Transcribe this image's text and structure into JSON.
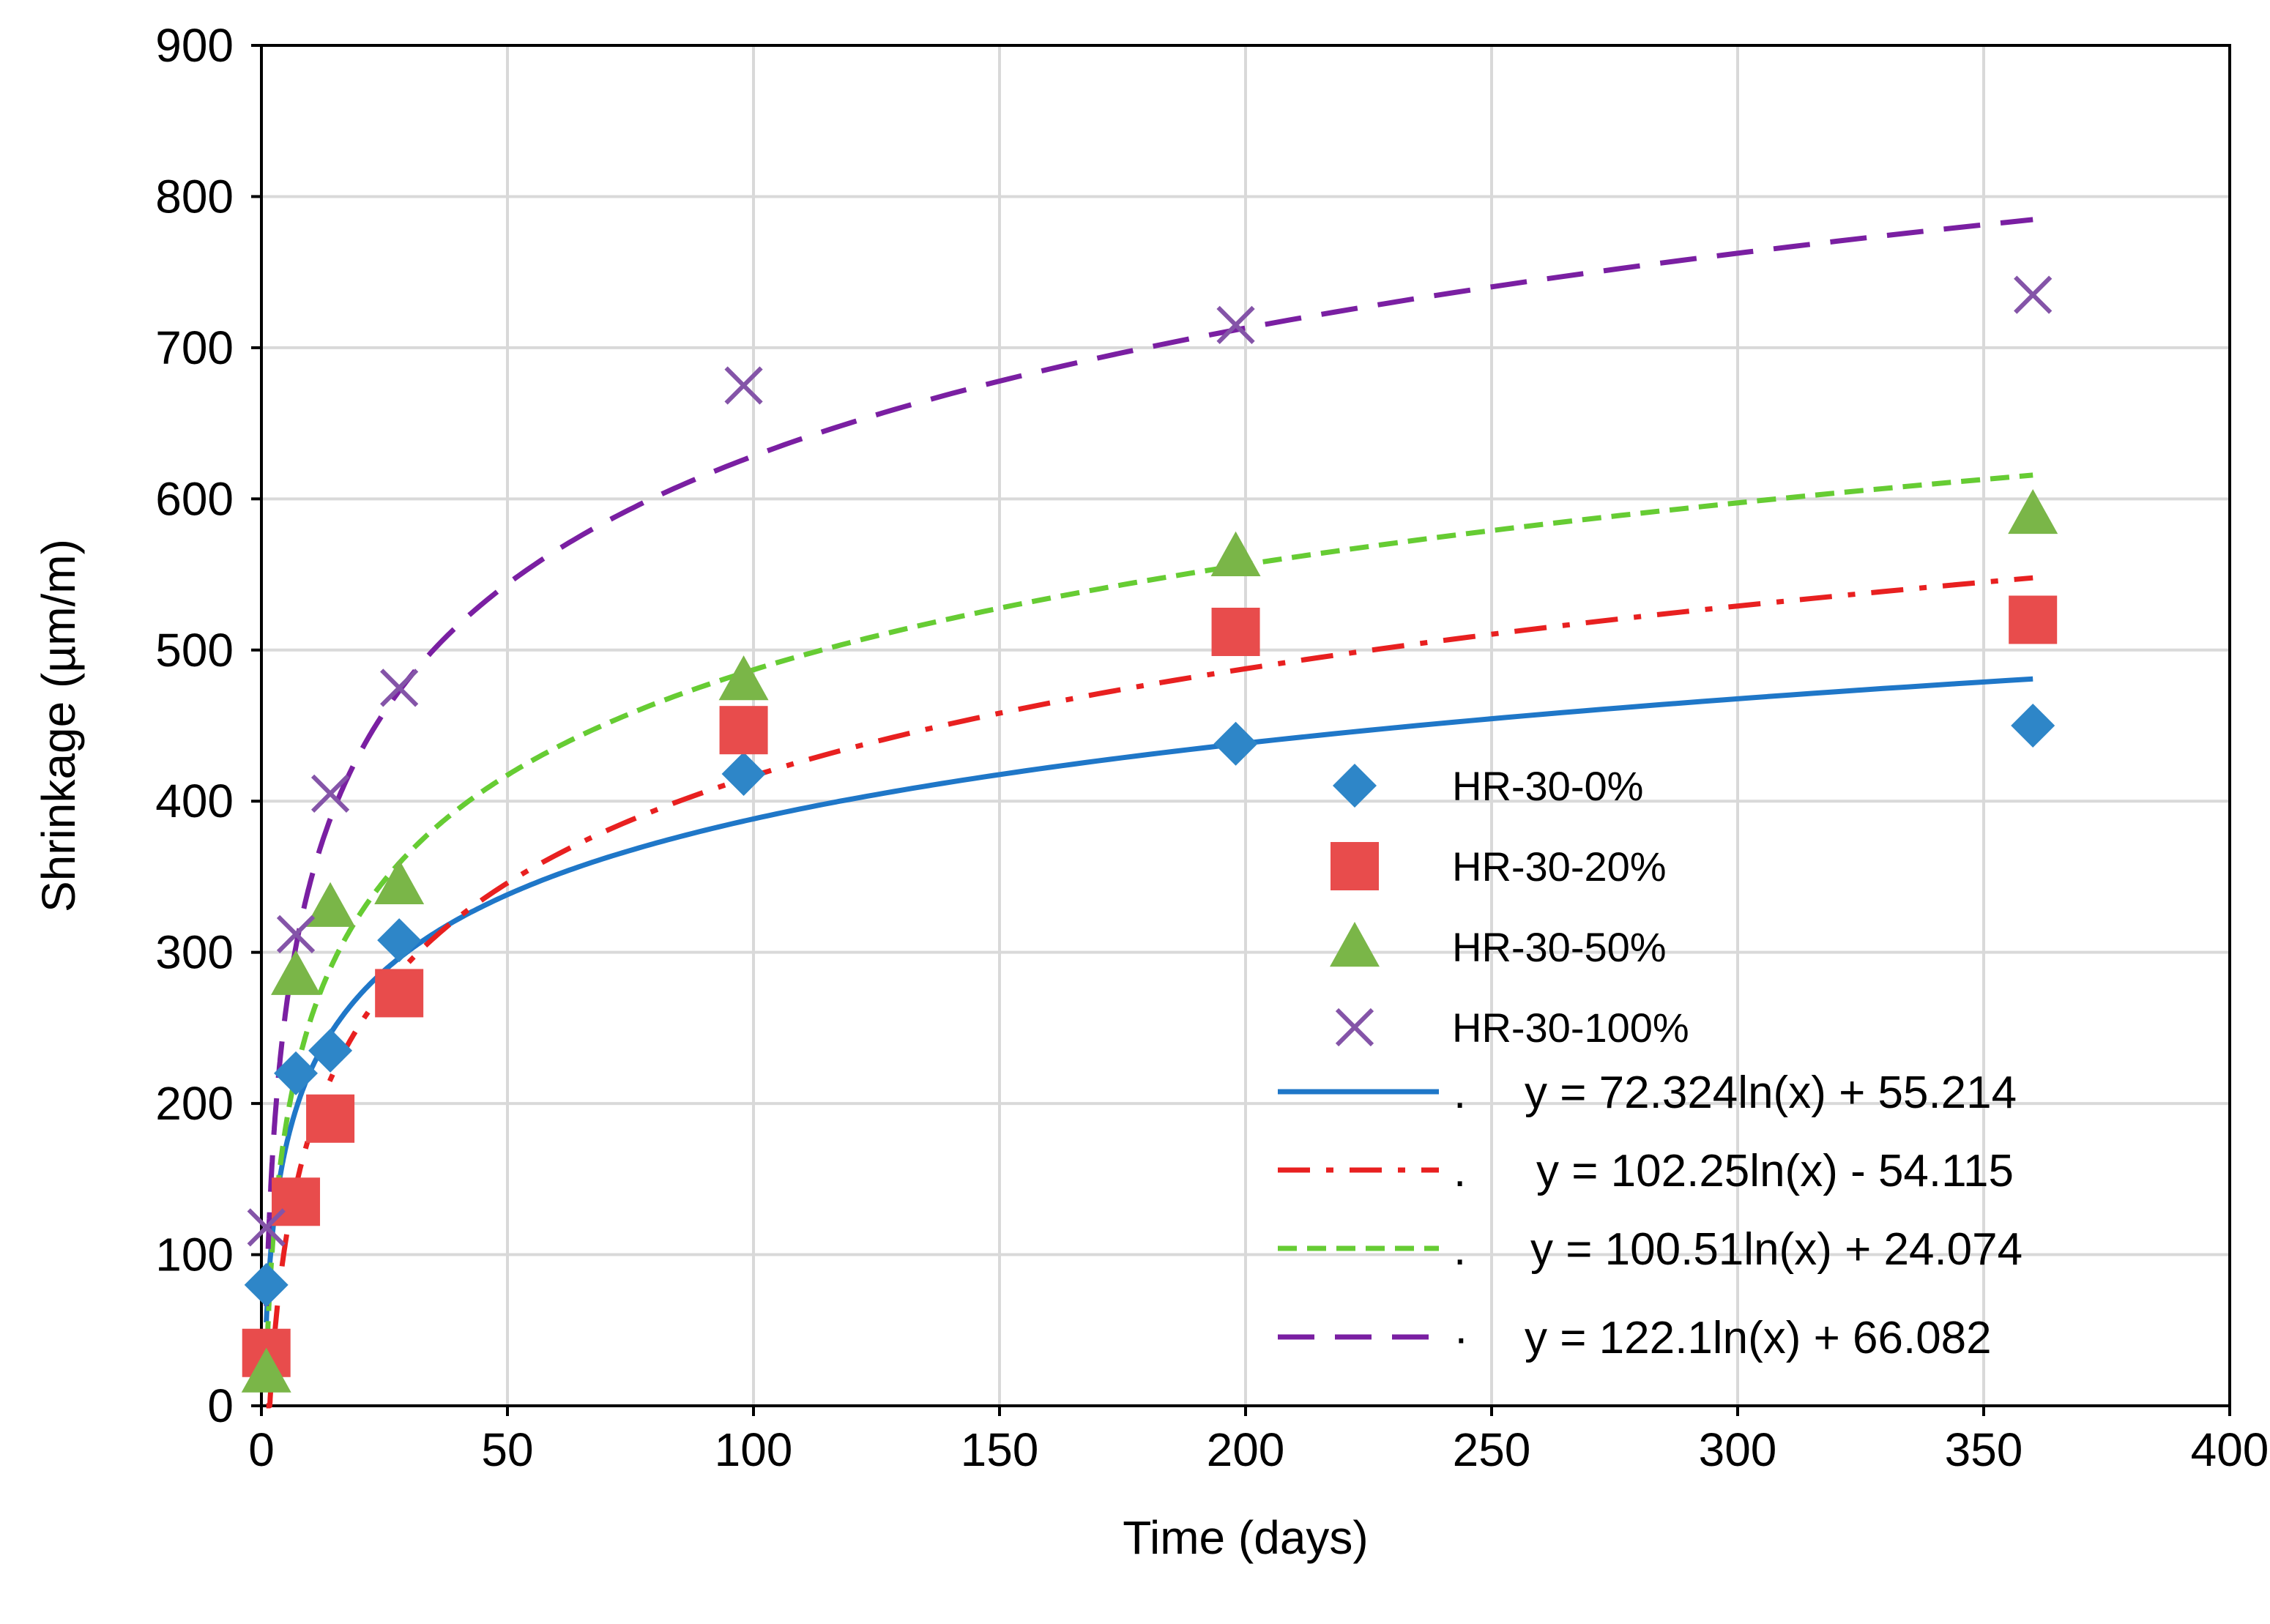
{
  "chart_data": {
    "type": "scatter",
    "xlabel": "Time (days)",
    "ylabel": "Shrinkage (µm/m)",
    "xlim": [
      0,
      400
    ],
    "ylim": [
      0,
      900
    ],
    "xticks": [
      0,
      50,
      100,
      150,
      200,
      250,
      300,
      350,
      400
    ],
    "yticks": [
      0,
      100,
      200,
      300,
      400,
      500,
      600,
      700,
      800,
      900
    ],
    "xtick_labels": [
      "0",
      "50",
      "100",
      "150",
      "200",
      "250",
      "300",
      "350",
      "400"
    ],
    "ytick_labels": [
      "0",
      "100",
      "200",
      "300",
      "400",
      "500",
      "600",
      "700",
      "800",
      "900"
    ],
    "grid": true,
    "legend_position": "center-right",
    "series": [
      {
        "name": "HR-30-0%",
        "marker": "diamond",
        "color": "#2e86c8",
        "x": [
          1,
          7,
          14,
          28,
          98,
          198,
          360
        ],
        "y": [
          80,
          220,
          235,
          308,
          418,
          438,
          450
        ]
      },
      {
        "name": "HR-30-20%",
        "marker": "square",
        "color": "#e84c4c",
        "x": [
          1,
          7,
          14,
          28,
          98,
          198,
          360
        ],
        "y": [
          35,
          135,
          190,
          273,
          447,
          512,
          520
        ]
      },
      {
        "name": "HR-30-50%",
        "marker": "triangle",
        "color": "#7ab648",
        "x": [
          1,
          7,
          14,
          28,
          98,
          198,
          360
        ],
        "y": [
          22,
          285,
          330,
          345,
          480,
          562,
          590
        ]
      },
      {
        "name": "HR-30-100%",
        "marker": "x",
        "color": "#8454a8",
        "x": [
          1,
          7,
          14,
          28,
          98,
          198,
          360
        ],
        "y": [
          118,
          312,
          405,
          475,
          675,
          715,
          735
        ]
      }
    ],
    "trendlines": [
      {
        "label": ".",
        "equation": "y = 72.324ln(x) + 55.214",
        "a": 72.324,
        "b": 55.214,
        "color": "#1f77c8",
        "dash": "none"
      },
      {
        "label": ".",
        "equation": "y = 102.25ln(x) - 54.115",
        "a": 102.25,
        "b": -54.115,
        "color": "#e82020",
        "dash": "dashdot"
      },
      {
        "label": ".",
        "equation": "y = 100.51ln(x) + 24.074",
        "a": 100.51,
        "b": 24.074,
        "color": "#66cc33",
        "dash": "short"
      },
      {
        "label": "·",
        "equation": "y = 122.1ln(x) + 66.082",
        "a": 122.1,
        "b": 66.082,
        "color": "#7a1fa2",
        "dash": "long"
      }
    ],
    "trend_x_range": [
      1,
      360
    ]
  }
}
